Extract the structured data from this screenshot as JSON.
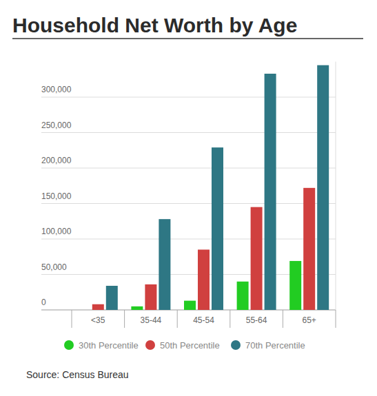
{
  "chart_data": {
    "type": "bar",
    "title": "Household Net Worth by Age",
    "source": "Source: Census Bureau",
    "categories": [
      "<35",
      "35-44",
      "45-54",
      "55-64",
      "65+"
    ],
    "series": [
      {
        "name": "30th Percentile",
        "color": "#22cc22",
        "values": [
          0,
          5000,
          13000,
          40000,
          69000
        ]
      },
      {
        "name": "50th Percentile",
        "color": "#d0403f",
        "values": [
          8000,
          36000,
          85000,
          145000,
          172000
        ]
      },
      {
        "name": "70th Percentile",
        "color": "#2e7784",
        "values": [
          34000,
          128000,
          229000,
          333000,
          345000
        ]
      }
    ],
    "ylim": [
      0,
      350000
    ],
    "yticks": [
      0,
      {
        "value": 50000,
        "label": "50,000"
      },
      {
        "value": 100000,
        "label": "100,000"
      },
      {
        "value": 150000,
        "label": "150,000"
      },
      {
        "value": 200000,
        "label": "200,000"
      },
      {
        "value": 250000,
        "label": "250,000"
      },
      {
        "value": 300000,
        "label": "300,000"
      }
    ],
    "grid": true,
    "legend": "bottom"
  }
}
